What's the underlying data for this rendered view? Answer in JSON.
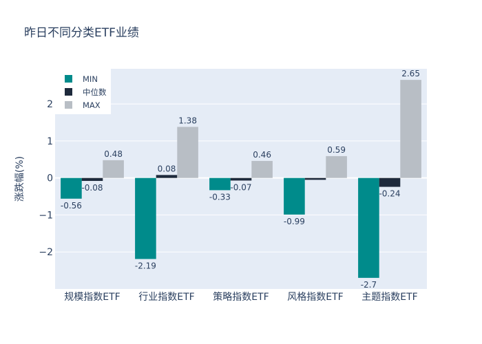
{
  "title": "昨日不同分类ETF业绩",
  "chart_data": {
    "type": "bar",
    "title": "昨日不同分类ETF业绩",
    "xlabel": "",
    "ylabel": "涨跌幅(%)",
    "categories": [
      "规模指数ETF",
      "行业指数ETF",
      "策略指数ETF",
      "风格指数ETF",
      "主题指数ETF"
    ],
    "series": [
      {
        "name": "MIN",
        "color": "#008b8b",
        "values": [
          -0.56,
          -2.19,
          -0.33,
          -0.99,
          -2.7
        ]
      },
      {
        "name": "中位数",
        "color": "#1e2a3c",
        "values": [
          -0.08,
          0.08,
          -0.07,
          -0.05,
          -0.24
        ]
      },
      {
        "name": "MAX",
        "color": "#b8bec5",
        "values": [
          0.48,
          1.38,
          0.46,
          0.59,
          2.65
        ]
      }
    ],
    "data_labels": [
      [
        "-0.56",
        "-0.08",
        "0.48"
      ],
      [
        "-2.19",
        "0.08",
        "1.38"
      ],
      [
        "-0.33",
        "-0.07",
        "0.46"
      ],
      [
        "-0.99",
        "",
        "0.59"
      ],
      [
        "-2.7",
        "-0.24",
        "2.65"
      ]
    ],
    "ylim": [
      -3.0,
      2.95
    ],
    "yticks": [
      2,
      1,
      0,
      -1,
      -2
    ],
    "ytick_labels": [
      "2",
      "1",
      "0",
      "−1",
      "−2"
    ],
    "grid": true,
    "legend_position": "top-left",
    "plot_bg": "#e5ecf6"
  }
}
